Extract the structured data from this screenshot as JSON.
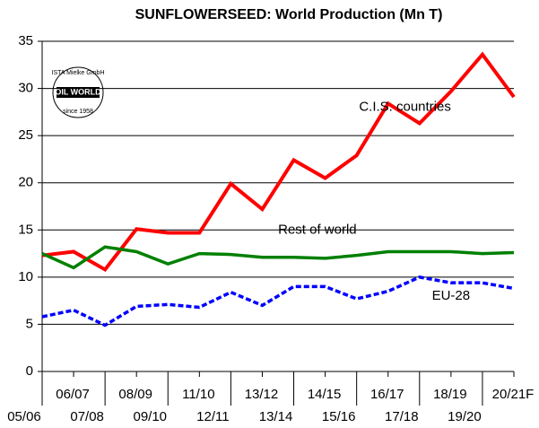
{
  "chart_data": {
    "type": "line",
    "title": "SUNFLOWERSEED: World Production (Mn T)",
    "categories": [
      "05/06",
      "06/07",
      "07/08",
      "08/09",
      "09/10",
      "11/10",
      "12/11",
      "13/12",
      "13/14",
      "14/15",
      "15/16",
      "16/17",
      "17/18",
      "18/19",
      "19/20",
      "20/21F"
    ],
    "series": [
      {
        "name": "C.I.S. countries",
        "color": "#ff0000",
        "dash": false,
        "values": [
          12.3,
          12.7,
          10.8,
          15.1,
          14.7,
          14.7,
          19.9,
          17.2,
          22.4,
          20.5,
          22.9,
          28.4,
          26.3,
          29.7,
          33.6,
          29.1
        ]
      },
      {
        "name": "Rest of world",
        "color": "#008000",
        "dash": false,
        "values": [
          12.5,
          11.0,
          13.2,
          12.7,
          11.4,
          12.5,
          12.4,
          12.1,
          12.1,
          12.0,
          12.3,
          12.7,
          12.7,
          12.7,
          12.5,
          12.6
        ]
      },
      {
        "name": "EU-28",
        "color": "#0000ff",
        "dash": true,
        "values": [
          5.8,
          6.5,
          4.9,
          6.9,
          7.1,
          6.8,
          8.4,
          7.0,
          9.0,
          9.0,
          7.7,
          8.5,
          10.0,
          9.4,
          9.4,
          8.8
        ]
      }
    ],
    "ylim": [
      0,
      35
    ],
    "yticks": [
      0,
      5,
      10,
      15,
      20,
      25,
      30,
      35
    ],
    "grid": true,
    "logo": {
      "top": "ISTA Mielke GmbH",
      "name": "OIL WORLD",
      "bottom": "since 1958"
    }
  }
}
